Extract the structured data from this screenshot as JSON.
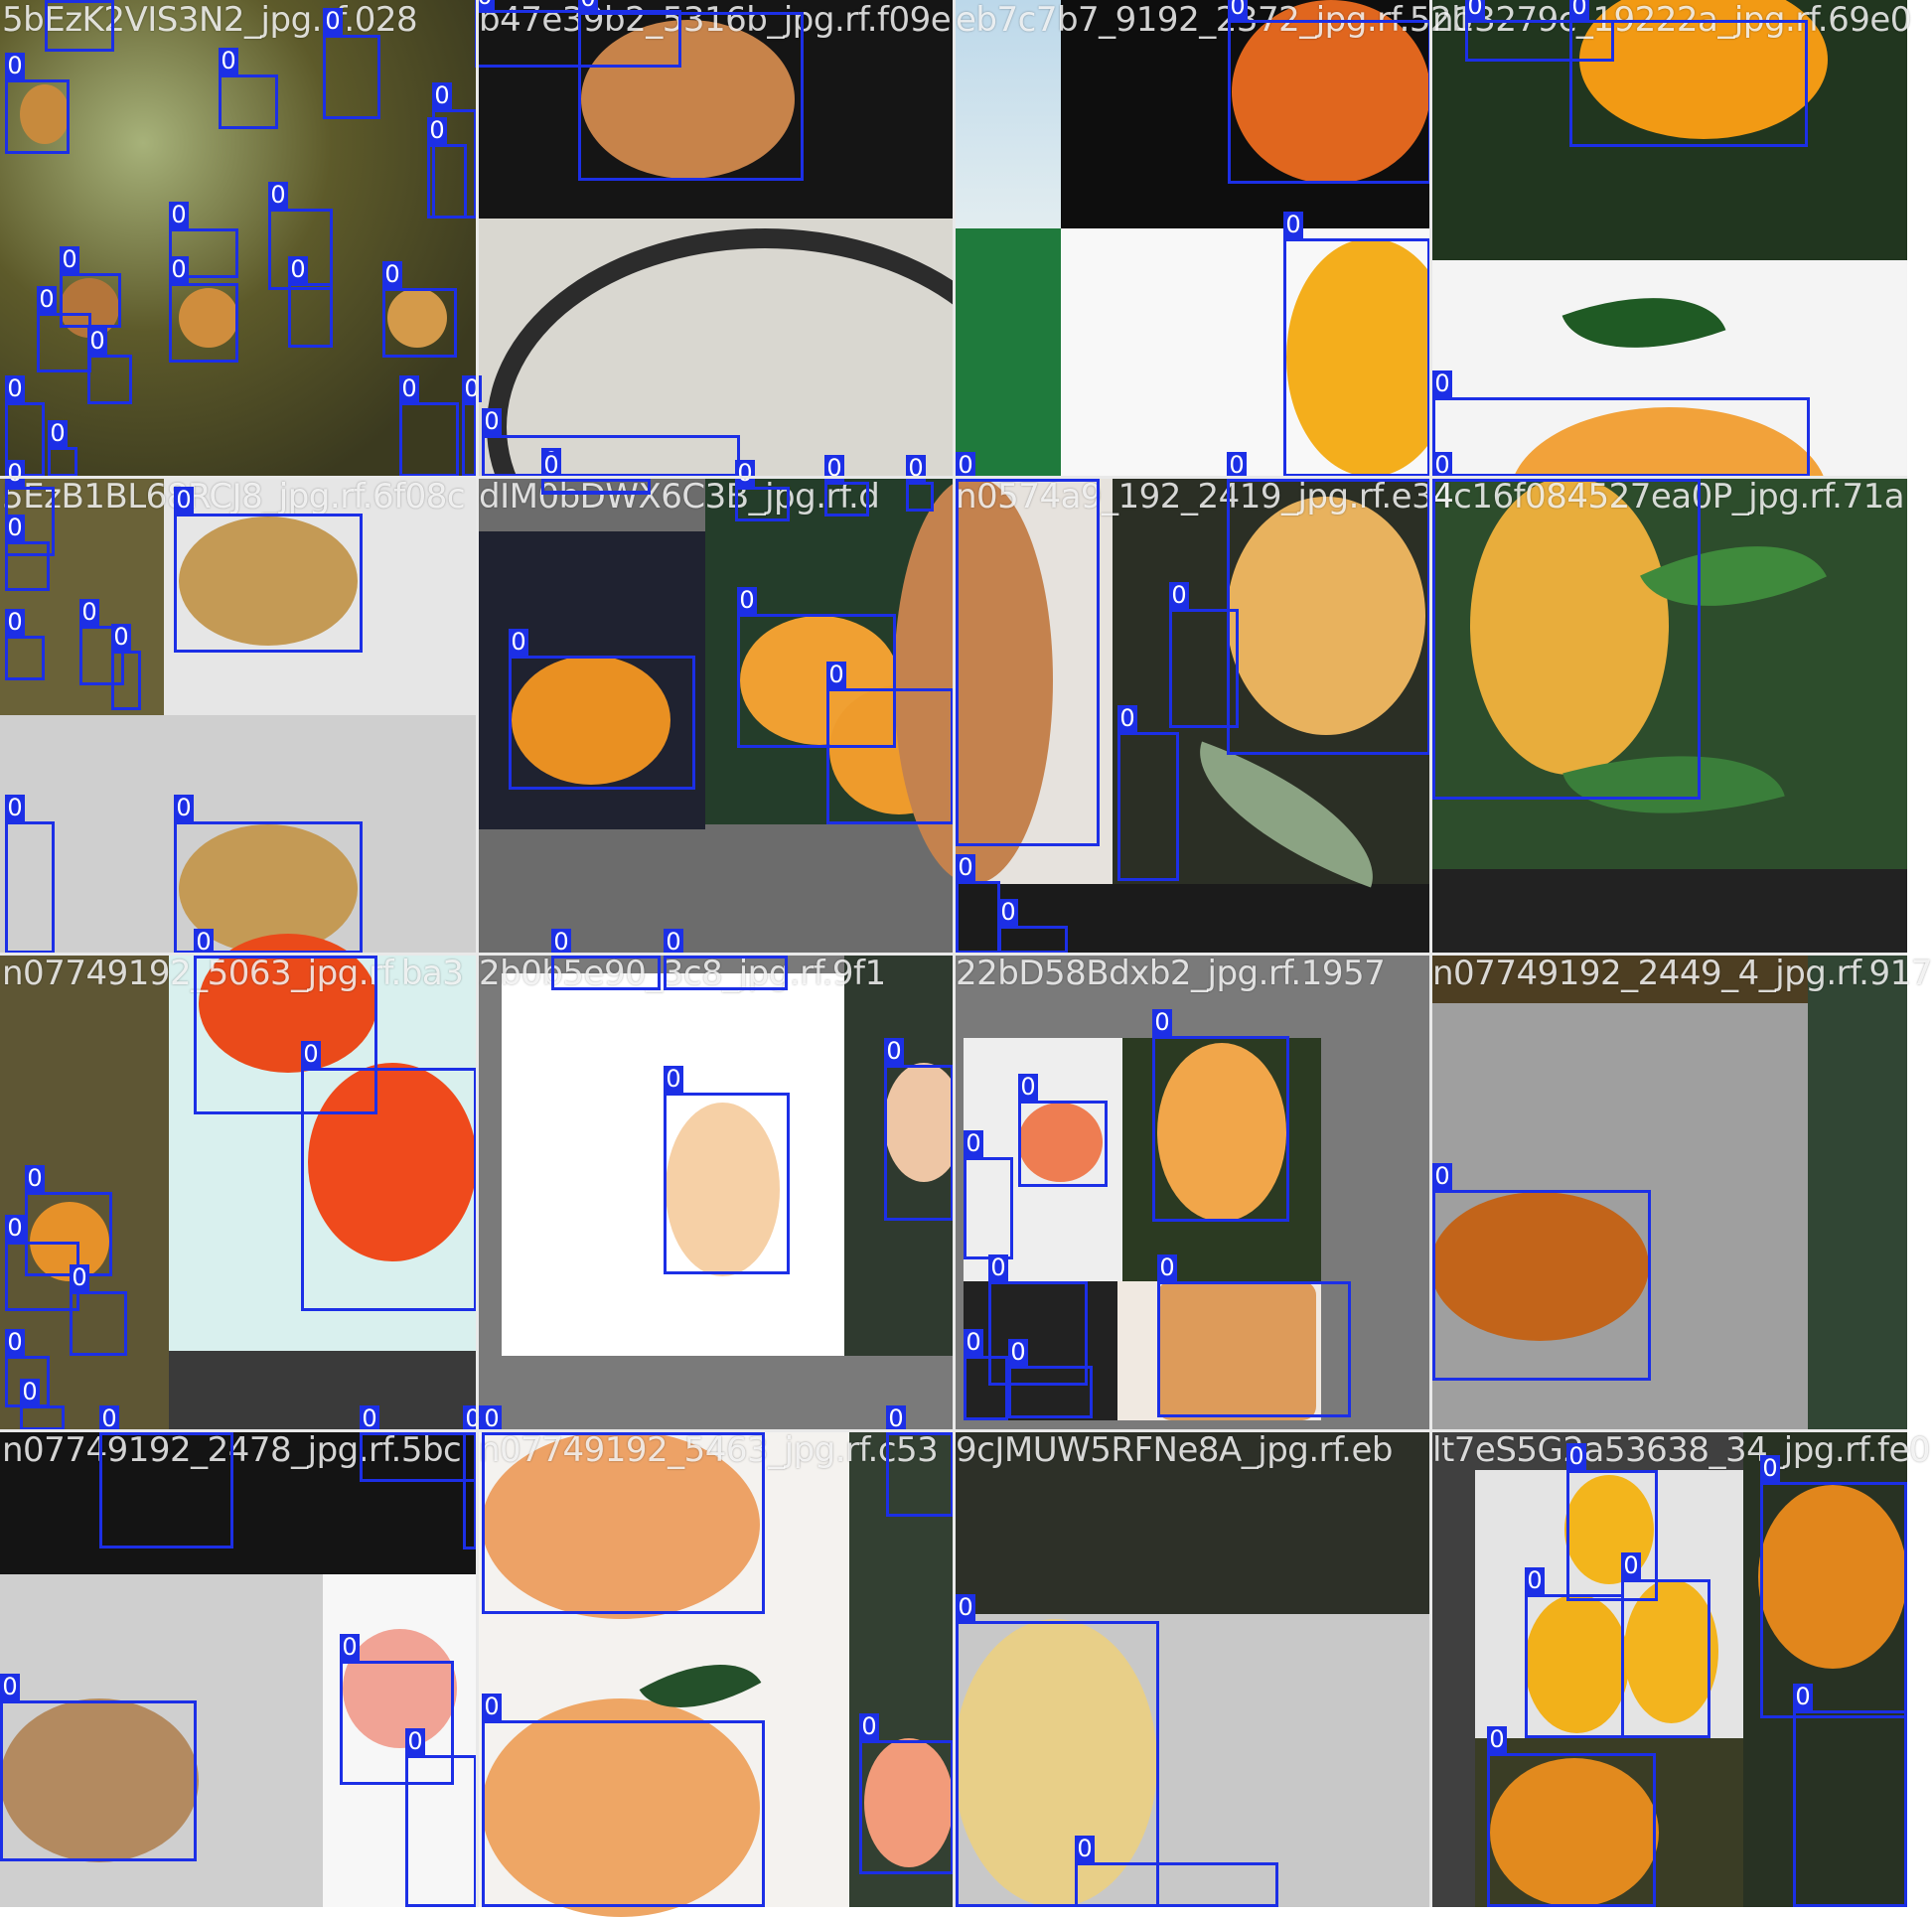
{
  "mosaic": {
    "class_label": "0",
    "box_color": "#1c2fe6",
    "tiles": [
      {
        "caption": "5bEzK2VIS3N2_jpg.rf.028"
      },
      {
        "caption": "b47e39b2_5316b_jpg.rf.f09e"
      },
      {
        "caption": "eb7c7b7_9192_2372_jpg.rf.52b"
      },
      {
        "caption": "n13279c_19222a_jpg.rf.69e0"
      },
      {
        "caption": "5EzB1BL68RCJ8_jpg.rf.6f08c"
      },
      {
        "caption": "dIM0bDWX6C3B_jpg.rf.d"
      },
      {
        "caption": "n0574a9_192_2419_jpg.rf.e34"
      },
      {
        "caption": "4c16f084527ea0P_jpg.rf.71a"
      },
      {
        "caption": "n07749192_5063_jpg.rf.ba3"
      },
      {
        "caption": "2b0b5e90_3c8_jpg.rf.9f1"
      },
      {
        "caption": "22bD58Bdxb2_jpg.rf.1957"
      },
      {
        "caption": "n07749192_2449_4_jpg.rf.917"
      },
      {
        "caption": "n07749192_2478_jpg.rf.5bc"
      },
      {
        "caption": "n07749192_5463_jpg.rf.c53"
      },
      {
        "caption": "9cJMUW5RFNe8A_jpg.rf.eb"
      },
      {
        "caption": "lt7eS5G2a53638_34_jpg.rf.fe0"
      }
    ]
  }
}
